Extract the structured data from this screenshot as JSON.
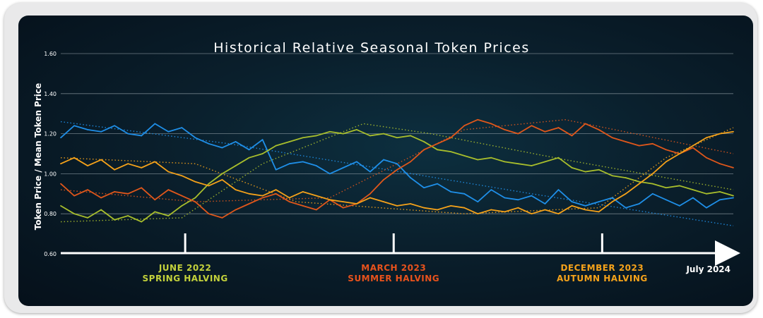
{
  "chart_data": {
    "type": "line",
    "title": "Historical Relative Seasonal Token Prices",
    "ylabel": "Token Price / Mean Token Price",
    "ylim": [
      0.6,
      1.6
    ],
    "yticks": [
      "1.60",
      "1.40",
      "1.20",
      "1.00",
      "0.80",
      "0.60"
    ],
    "grid": true,
    "x_domain": [
      0,
      100
    ],
    "events": [
      {
        "x": 18.5,
        "line1": "JUNE 2022",
        "line2": "SPRING HALVING",
        "color": "#c3d13b"
      },
      {
        "x": 49.5,
        "line1": "MARCH 2023",
        "line2": "SUMMER HALVING",
        "color": "#e8521c"
      },
      {
        "x": 80.5,
        "line1": "DECEMBER 2023",
        "line2": "AUTUMN HALVING",
        "color": "#f5a21a"
      }
    ],
    "end_label": "July 2024",
    "series": [
      {
        "color": "#1f8fe8",
        "x": [
          0,
          2,
          4,
          6,
          8,
          10,
          12,
          14,
          16,
          18,
          20,
          22,
          24,
          26,
          28,
          30,
          32,
          34,
          36,
          38,
          40,
          42,
          44,
          46,
          48,
          50,
          52,
          54,
          56,
          58,
          60,
          62,
          64,
          66,
          68,
          70,
          72,
          74,
          76,
          78,
          80,
          82,
          84,
          86,
          88,
          90,
          92,
          94,
          96,
          98,
          100
        ],
        "values": [
          1.18,
          1.24,
          1.22,
          1.21,
          1.24,
          1.2,
          1.19,
          1.25,
          1.21,
          1.23,
          1.18,
          1.15,
          1.13,
          1.16,
          1.12,
          1.17,
          1.02,
          1.05,
          1.06,
          1.04,
          1.0,
          1.03,
          1.06,
          1.01,
          1.07,
          1.05,
          0.98,
          0.93,
          0.95,
          0.91,
          0.9,
          0.86,
          0.92,
          0.88,
          0.87,
          0.89,
          0.85,
          0.92,
          0.86,
          0.84,
          0.86,
          0.88,
          0.83,
          0.85,
          0.9,
          0.87,
          0.84,
          0.88,
          0.83,
          0.87,
          0.88
        ],
        "trend": [
          [
            0,
            1.26
          ],
          [
            25,
            1.15
          ],
          [
            45,
            1.04
          ],
          [
            70,
            0.9
          ],
          [
            100,
            0.74
          ]
        ]
      },
      {
        "color": "#a8be2c",
        "x": [
          0,
          2,
          4,
          6,
          8,
          10,
          12,
          14,
          16,
          18,
          20,
          22,
          24,
          26,
          28,
          30,
          32,
          34,
          36,
          38,
          40,
          42,
          44,
          46,
          48,
          50,
          52,
          54,
          56,
          58,
          60,
          62,
          64,
          66,
          68,
          70,
          72,
          74,
          76,
          78,
          80,
          82,
          84,
          86,
          88,
          90,
          92,
          94,
          96,
          98,
          100
        ],
        "values": [
          0.84,
          0.8,
          0.78,
          0.82,
          0.77,
          0.79,
          0.76,
          0.81,
          0.79,
          0.84,
          0.88,
          0.95,
          1.0,
          1.04,
          1.08,
          1.1,
          1.14,
          1.16,
          1.18,
          1.19,
          1.21,
          1.2,
          1.22,
          1.19,
          1.2,
          1.18,
          1.19,
          1.16,
          1.12,
          1.11,
          1.09,
          1.07,
          1.08,
          1.06,
          1.05,
          1.04,
          1.06,
          1.08,
          1.03,
          1.01,
          1.02,
          0.99,
          0.98,
          0.96,
          0.95,
          0.93,
          0.94,
          0.92,
          0.9,
          0.91,
          0.89
        ],
        "trend": [
          [
            0,
            0.76
          ],
          [
            18,
            0.78
          ],
          [
            30,
            1.05
          ],
          [
            45,
            1.25
          ],
          [
            55,
            1.2
          ],
          [
            75,
            1.07
          ],
          [
            100,
            0.92
          ]
        ]
      },
      {
        "color": "#e0571b",
        "x": [
          0,
          2,
          4,
          6,
          8,
          10,
          12,
          14,
          16,
          18,
          20,
          22,
          24,
          26,
          28,
          30,
          32,
          34,
          36,
          38,
          40,
          42,
          44,
          46,
          48,
          50,
          52,
          54,
          56,
          58,
          60,
          62,
          64,
          66,
          68,
          70,
          72,
          74,
          76,
          78,
          80,
          82,
          84,
          86,
          88,
          90,
          92,
          94,
          96,
          98,
          100
        ],
        "values": [
          0.95,
          0.89,
          0.92,
          0.88,
          0.91,
          0.9,
          0.93,
          0.87,
          0.92,
          0.89,
          0.86,
          0.8,
          0.78,
          0.82,
          0.85,
          0.88,
          0.9,
          0.86,
          0.84,
          0.82,
          0.87,
          0.83,
          0.85,
          0.9,
          0.97,
          1.02,
          1.06,
          1.12,
          1.15,
          1.18,
          1.24,
          1.27,
          1.25,
          1.22,
          1.2,
          1.24,
          1.21,
          1.23,
          1.19,
          1.25,
          1.22,
          1.18,
          1.16,
          1.14,
          1.15,
          1.12,
          1.1,
          1.13,
          1.08,
          1.05,
          1.03
        ],
        "trend": [
          [
            0,
            0.92
          ],
          [
            20,
            0.86
          ],
          [
            40,
            0.88
          ],
          [
            60,
            1.22
          ],
          [
            75,
            1.27
          ],
          [
            100,
            1.1
          ]
        ]
      },
      {
        "color": "#f5a21a",
        "x": [
          0,
          2,
          4,
          6,
          8,
          10,
          12,
          14,
          16,
          18,
          20,
          22,
          24,
          26,
          28,
          30,
          32,
          34,
          36,
          38,
          40,
          42,
          44,
          46,
          48,
          50,
          52,
          54,
          56,
          58,
          60,
          62,
          64,
          66,
          68,
          70,
          72,
          74,
          76,
          78,
          80,
          82,
          84,
          86,
          88,
          90,
          92,
          94,
          96,
          98,
          100
        ],
        "values": [
          1.05,
          1.08,
          1.04,
          1.07,
          1.02,
          1.05,
          1.03,
          1.06,
          1.01,
          0.99,
          0.96,
          0.94,
          0.97,
          0.92,
          0.9,
          0.89,
          0.92,
          0.88,
          0.91,
          0.89,
          0.87,
          0.86,
          0.85,
          0.88,
          0.86,
          0.84,
          0.85,
          0.83,
          0.82,
          0.84,
          0.83,
          0.8,
          0.82,
          0.81,
          0.83,
          0.8,
          0.82,
          0.8,
          0.84,
          0.82,
          0.81,
          0.86,
          0.9,
          0.95,
          1.0,
          1.06,
          1.1,
          1.14,
          1.18,
          1.2,
          1.21
        ],
        "trend": [
          [
            0,
            1.08
          ],
          [
            20,
            1.05
          ],
          [
            35,
            0.86
          ],
          [
            60,
            0.8
          ],
          [
            80,
            0.83
          ],
          [
            90,
            1.08
          ],
          [
            100,
            1.23
          ]
        ]
      }
    ]
  }
}
